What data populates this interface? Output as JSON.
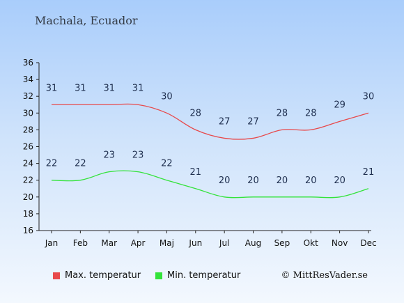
{
  "header": {
    "location": "Machala, Ecuador"
  },
  "chart_data": {
    "type": "line",
    "categories": [
      "Jan",
      "Feb",
      "Mar",
      "Apr",
      "Maj",
      "Jun",
      "Jul",
      "Aug",
      "Sep",
      "Okt",
      "Nov",
      "Dec"
    ],
    "series": [
      {
        "name": "Max. temperatur",
        "color": "#e8494b",
        "values": [
          31,
          31,
          31,
          31,
          30,
          28,
          27,
          27,
          28,
          28,
          29,
          30
        ]
      },
      {
        "name": "Min. temperatur",
        "color": "#33e33a",
        "values": [
          22,
          22,
          23,
          23,
          22,
          21,
          20,
          20,
          20,
          20,
          20,
          21
        ]
      }
    ],
    "yticks": [
      16,
      18,
      20,
      22,
      24,
      26,
      28,
      30,
      32,
      34,
      36
    ],
    "ylim": [
      16,
      36
    ],
    "grid": false,
    "legend_position": "bottom"
  },
  "footer": {
    "copyright": "© MittResVader.se"
  }
}
